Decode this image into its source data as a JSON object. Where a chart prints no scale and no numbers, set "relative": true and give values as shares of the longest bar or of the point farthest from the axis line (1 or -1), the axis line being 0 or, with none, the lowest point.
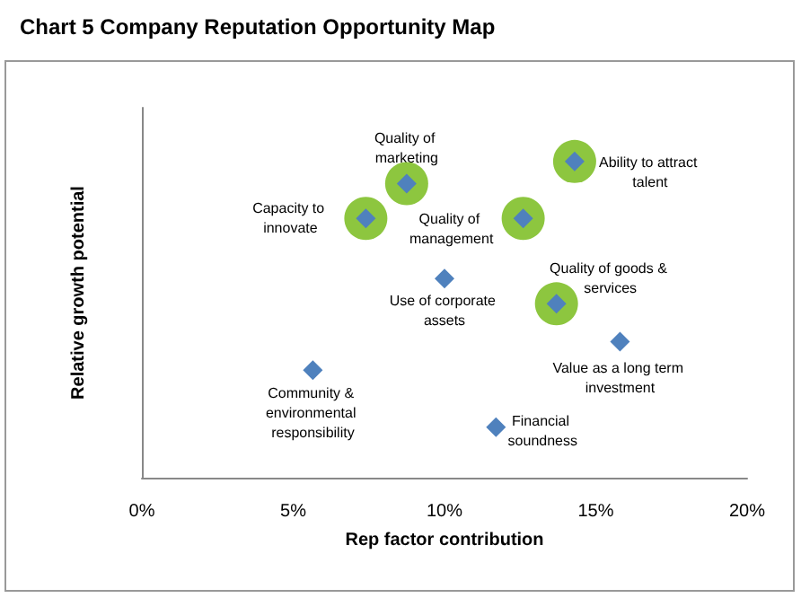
{
  "chart_data": {
    "type": "scatter",
    "title": "Chart 5 Company Reputation Opportunity Map",
    "xlabel": "Rep factor contribution",
    "ylabel": "Relative growth potential",
    "relative": true,
    "tick_labels": "x",
    "grid": false,
    "xlim": [
      0,
      20
    ],
    "xticks": [
      {
        "value": 0,
        "label": "0%"
      },
      {
        "value": 5,
        "label": "5%"
      },
      {
        "value": 10,
        "label": "10%"
      },
      {
        "value": 15,
        "label": "15%"
      },
      {
        "value": 20,
        "label": "20%"
      }
    ],
    "series": [
      {
        "color": "#8dc63f",
        "marker": "circle",
        "x": [
          8.75,
          7.4,
          14.3,
          12.6,
          13.7
        ],
        "values": [
          0.93,
          0.82,
          1,
          0.82,
          0.55
        ]
      },
      {
        "color": "#4f81bd",
        "marker": "diamond",
        "x": [
          8.75,
          7.4,
          14.3,
          12.6,
          10.0,
          13.7,
          15.8,
          5.65,
          11.7
        ],
        "values": [
          0.93,
          0.82,
          1,
          0.82,
          0.63,
          0.55,
          0.43,
          0.34,
          0.16
        ]
      }
    ],
    "annotations": [
      {
        "text": "Quality of marketing",
        "x": 8.75,
        "y": 0.93
      },
      {
        "text": "Capacity to innovate",
        "x": 7.4,
        "y": 0.82
      },
      {
        "text": "Ability to attract talent",
        "x": 14.3,
        "y": 1
      },
      {
        "text": "Quality of management",
        "x": 12.6,
        "y": 0.82
      },
      {
        "text": "Use of corporate assets",
        "x": 10.0,
        "y": 0.63
      },
      {
        "text": "Quality of goods & services",
        "x": 13.7,
        "y": 0.55
      },
      {
        "text": "Value as a long term investment",
        "x": 15.8,
        "y": 0.43
      },
      {
        "text": "Community & environmental responsibility",
        "x": 5.65,
        "y": 0.34
      },
      {
        "text": "Financial soundness",
        "x": 11.7,
        "y": 0.16
      }
    ]
  }
}
